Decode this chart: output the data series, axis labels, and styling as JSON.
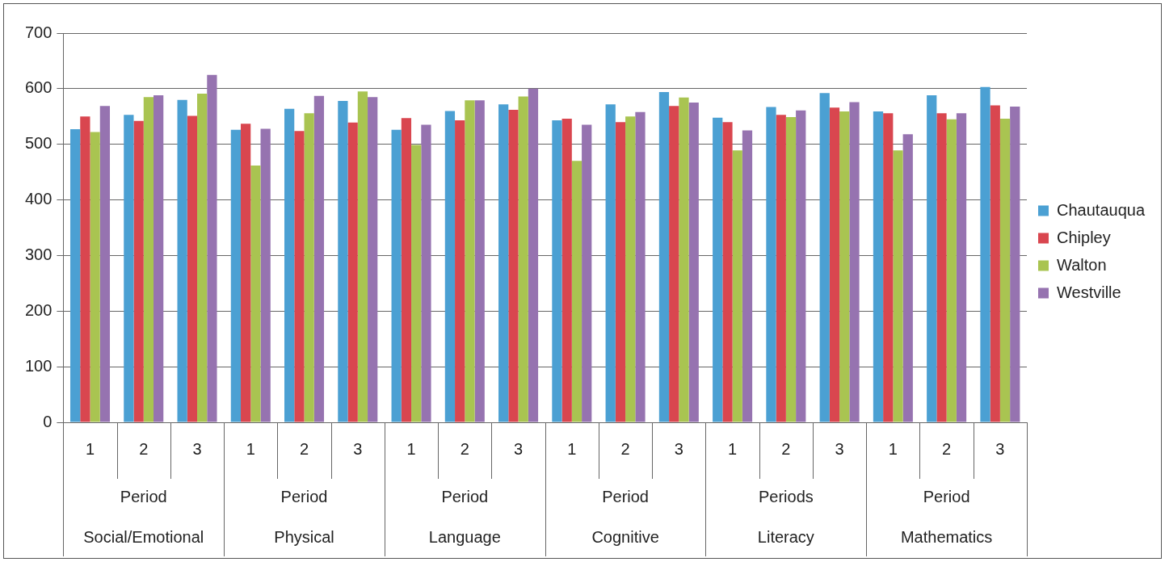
{
  "chart_data": {
    "type": "bar",
    "categories": [
      "1",
      "2",
      "3",
      "1",
      "2",
      "3",
      "1",
      "2",
      "3",
      "1",
      "2",
      "3",
      "1",
      "2",
      "3",
      "1",
      "2",
      "3"
    ],
    "series": [
      {
        "name": "Chautauqua",
        "color": "#4ba0d3",
        "values": [
          527,
          553,
          580,
          526,
          564,
          578,
          526,
          560,
          572,
          543,
          572,
          594,
          548,
          567,
          592,
          559,
          588,
          603
        ]
      },
      {
        "name": "Chipley",
        "color": "#d9464f",
        "values": [
          550,
          542,
          551,
          537,
          524,
          539,
          547,
          543,
          562,
          546,
          540,
          569,
          540,
          553,
          566,
          556,
          556,
          570
        ]
      },
      {
        "name": "Walton",
        "color": "#a9c451",
        "values": [
          522,
          585,
          591,
          462,
          556,
          595,
          499,
          579,
          586,
          470,
          550,
          584,
          489,
          549,
          559,
          489,
          545,
          546
        ]
      },
      {
        "name": "Westville",
        "color": "#9673b0",
        "values": [
          569,
          588,
          625,
          528,
          587,
          585,
          535,
          579,
          600,
          535,
          558,
          575,
          525,
          561,
          576,
          518,
          556,
          568
        ]
      }
    ],
    "ylim": [
      0,
      700
    ],
    "yticks": [
      0,
      100,
      200,
      300,
      400,
      500,
      600,
      700
    ],
    "grid": "y",
    "legend": "right",
    "annotations": [
      "Period",
      "Social/Emotional",
      "Period",
      "Physical",
      "Period",
      "Language",
      "Period",
      "Cognitive",
      "Periods",
      "Literacy",
      "Period",
      "Mathematics"
    ]
  }
}
